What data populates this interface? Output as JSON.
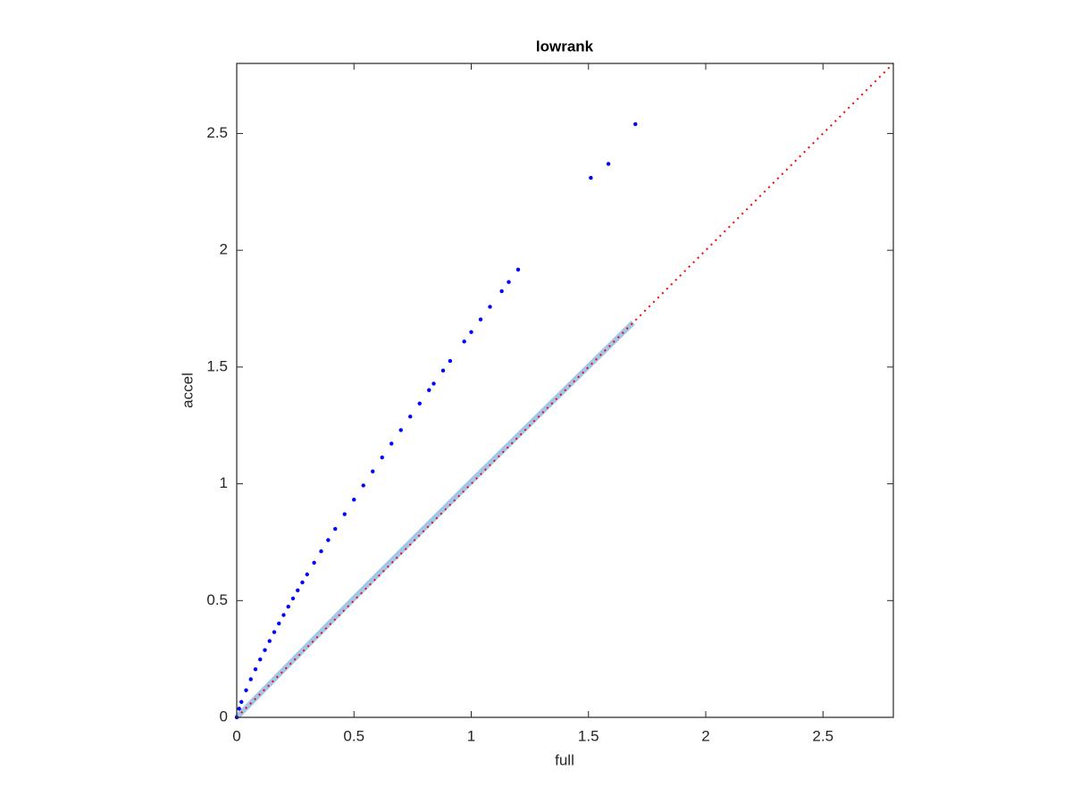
{
  "chart_data": {
    "type": "scatter",
    "title": "lowrank",
    "x_label": "full",
    "y_label": "accel",
    "xlim": [
      0,
      2.8
    ],
    "ylim": [
      0,
      2.8
    ],
    "xticks": [
      0,
      0.5,
      1,
      1.5,
      2,
      2.5
    ],
    "yticks": [
      0,
      0.5,
      1,
      1.5,
      2,
      2.5
    ],
    "series": [
      {
        "style": "band",
        "color": "#8fbce6",
        "x": [
          0,
          0.5,
          1.0,
          1.69
        ],
        "values": [
          0,
          0.51,
          1.01,
          1.69
        ]
      },
      {
        "style": "dots",
        "color": "#0000ff",
        "x": [
          0,
          0.01,
          0.02,
          0.04,
          0.06,
          0.08,
          0.1,
          0.12,
          0.14,
          0.16,
          0.18,
          0.2,
          0.22,
          0.24,
          0.26,
          0.28,
          0.3,
          0.33,
          0.36,
          0.39,
          0.42,
          0.46,
          0.5,
          0.54,
          0.58,
          0.62,
          0.66,
          0.7,
          0.74,
          0.78,
          0.82,
          0.84,
          0.88,
          0.91,
          0.97,
          1.0,
          1.04,
          1.08,
          1.13,
          1.16,
          1.2,
          1.51,
          1.585,
          1.7
        ],
        "values": [
          0,
          0.037,
          0.066,
          0.116,
          0.163,
          0.206,
          0.248,
          0.288,
          0.327,
          0.365,
          0.402,
          0.438,
          0.474,
          0.509,
          0.544,
          0.578,
          0.612,
          0.662,
          0.711,
          0.759,
          0.807,
          0.87,
          0.932,
          0.993,
          1.053,
          1.113,
          1.172,
          1.23,
          1.288,
          1.344,
          1.401,
          1.429,
          1.485,
          1.526,
          1.609,
          1.65,
          1.704,
          1.758,
          1.825,
          1.864,
          1.917,
          2.31,
          2.37,
          2.54
        ]
      },
      {
        "style": "dotted",
        "color": "#ff0000",
        "x": [
          0,
          2.8
        ],
        "values": [
          0,
          2.8
        ]
      }
    ]
  }
}
